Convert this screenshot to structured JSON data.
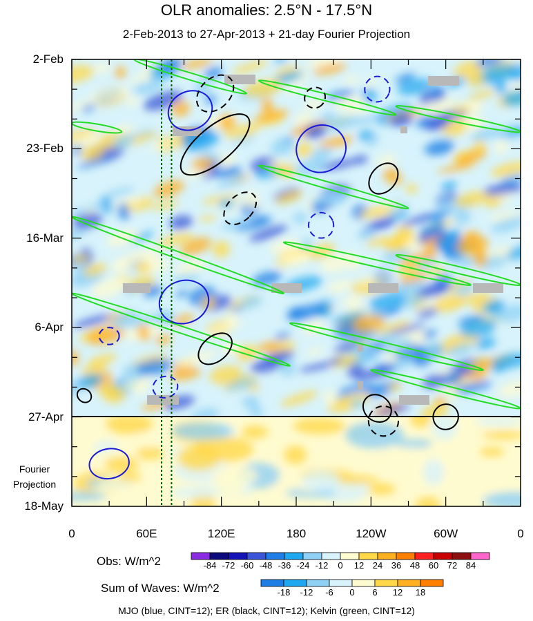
{
  "title": "OLR anomalies: 2.5°N - 17.5°N",
  "subtitle": "2-Feb-2013 to 27-Apr-2013 + 21-day Fourier Projection",
  "projection_note": [
    "Fourier",
    "Projection"
  ],
  "footer": "MJO (blue, CINT=12); ER (black, CINT=12); Kelvin (green, CINT=12)",
  "obs_colorbar": {
    "label": "Obs: W/m^2",
    "ticks": [
      "-84",
      "-72",
      "-60",
      "-48",
      "-36",
      "-24",
      "-12",
      "0",
      "12",
      "24",
      "36",
      "48",
      "60",
      "72",
      "84"
    ],
    "colors": [
      "#8a2be2",
      "#0a0a7a",
      "#1414b4",
      "#3a55d6",
      "#1e7ee6",
      "#1fa8f0",
      "#8fd0f5",
      "#d8f3fb",
      "#fffbd0",
      "#ffd84a",
      "#ffb020",
      "#ff8000",
      "#ff2020",
      "#c80000",
      "#8c1010",
      "#ff66cc"
    ]
  },
  "waves_colorbar": {
    "label": "Sum of Waves: W/m^2",
    "ticks": [
      "-18",
      "-12",
      "-6",
      "0",
      "6",
      "12",
      "18"
    ],
    "colors": [
      "#1e7ee6",
      "#1fa8f0",
      "#8fd0f5",
      "#d8f3fb",
      "#fffbd0",
      "#ffd84a",
      "#ffb020",
      "#ff8000"
    ]
  },
  "chart_data": {
    "type": "heatmap",
    "description_axis_x": "longitude",
    "x_ticks": [
      "0",
      "60E",
      "120E",
      "180",
      "120W",
      "60W",
      "0"
    ],
    "y_ticks": [
      "2-Feb",
      "23-Feb",
      "16-Mar",
      "6-Apr",
      "27-Apr",
      "18-May"
    ],
    "observation_end": "27-Apr",
    "projection_end": "18-May",
    "colors": {
      "mjo": "#1a1ad6",
      "er": "#000000",
      "kelvin": "#22dd22",
      "reference_line": "#006400"
    },
    "reference_lon_lines": [
      72,
      80
    ],
    "kelvin_bands": [
      {
        "lon": [
          50,
          140
        ],
        "date": [
          "2-Feb",
          "10-Feb"
        ]
      },
      {
        "lon": [
          0,
          40
        ],
        "date": [
          "17-Feb",
          "19-Feb"
        ]
      },
      {
        "lon": [
          150,
          260
        ],
        "date": [
          "7-Feb",
          "15-Feb"
        ]
      },
      {
        "lon": [
          260,
          360
        ],
        "date": [
          "13-Feb",
          "19-Feb"
        ]
      },
      {
        "lon": [
          150,
          270
        ],
        "date": [
          "27-Feb",
          "9-Mar"
        ]
      },
      {
        "lon": [
          0,
          170
        ],
        "date": [
          "11-Mar",
          "29-Mar"
        ]
      },
      {
        "lon": [
          170,
          320
        ],
        "date": [
          "17-Mar",
          "27-Mar"
        ]
      },
      {
        "lon": [
          260,
          360
        ],
        "date": [
          "20-Mar",
          "27-Mar"
        ]
      },
      {
        "lon": [
          0,
          175
        ],
        "date": [
          "29-Mar",
          "15-Apr"
        ]
      },
      {
        "lon": [
          175,
          330
        ],
        "date": [
          "5-Apr",
          "16-Apr"
        ]
      },
      {
        "lon": [
          240,
          360
        ],
        "date": [
          "16-Apr",
          "25-Apr"
        ]
      }
    ],
    "mjo_contours": [
      {
        "lon": 95,
        "date": "14-Feb",
        "len_days": 9,
        "wid_lon": 18,
        "tilt": -25,
        "dashed": false
      },
      {
        "lon": 200,
        "date": "23-Feb",
        "len_days": 11,
        "wid_lon": 20,
        "tilt": -22,
        "dashed": false
      },
      {
        "lon": 90,
        "date": "31-Mar",
        "len_days": 10,
        "wid_lon": 20,
        "tilt": -18,
        "dashed": false
      },
      {
        "lon": 30,
        "date": "8-May",
        "len_days": 7,
        "wid_lon": 16,
        "tilt": -10,
        "dashed": false
      },
      {
        "lon": 200,
        "date": "13-Mar",
        "len_days": 6,
        "wid_lon": 10,
        "tilt": -20,
        "dashed": true
      },
      {
        "lon": 245,
        "date": "9-Feb",
        "len_days": 6,
        "wid_lon": 10,
        "tilt": 20,
        "dashed": true
      },
      {
        "lon": 30,
        "date": "8-Apr",
        "len_days": 4,
        "wid_lon": 8,
        "tilt": 0,
        "dashed": true
      },
      {
        "lon": 75,
        "date": "20-Apr",
        "len_days": 5,
        "wid_lon": 10,
        "tilt": -15,
        "dashed": true
      }
    ],
    "er_contours": [
      {
        "lon": 115,
        "date": "22-Feb",
        "len_days": 20,
        "wid_lon": 14,
        "tilt": 50,
        "dashed": false
      },
      {
        "lon": 250,
        "date": "2-Mar",
        "len_days": 8,
        "wid_lon": 10,
        "tilt": 40,
        "dashed": false
      },
      {
        "lon": 115,
        "date": "11-Apr",
        "len_days": 9,
        "wid_lon": 10,
        "tilt": 50,
        "dashed": false
      },
      {
        "lon": 245,
        "date": "25-Apr",
        "len_days": 6,
        "wid_lon": 12,
        "tilt": 40,
        "dashed": false
      },
      {
        "lon": 300,
        "date": "27-Apr",
        "len_days": 6,
        "wid_lon": 10,
        "tilt": 40,
        "dashed": false
      },
      {
        "lon": 10,
        "date": "22-Apr",
        "len_days": 3,
        "wid_lon": 6,
        "tilt": 40,
        "dashed": false
      },
      {
        "lon": 115,
        "date": "10-Feb",
        "len_days": 10,
        "wid_lon": 12,
        "tilt": 45,
        "dashed": true
      },
      {
        "lon": 135,
        "date": "9-Mar",
        "len_days": 9,
        "wid_lon": 10,
        "tilt": 45,
        "dashed": true
      },
      {
        "lon": 195,
        "date": "11-Feb",
        "len_days": 5,
        "wid_lon": 8,
        "tilt": 45,
        "dashed": true
      },
      {
        "lon": 250,
        "date": "28-Apr",
        "len_days": 7,
        "wid_lon": 12,
        "tilt": 40,
        "dashed": true
      }
    ]
  }
}
